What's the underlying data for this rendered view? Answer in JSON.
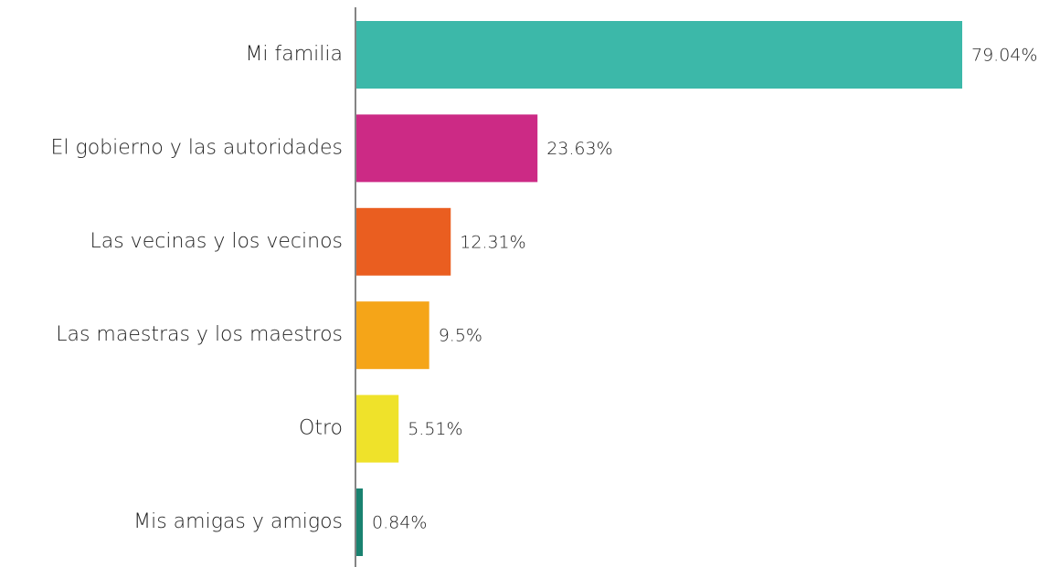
{
  "chart_data": {
    "type": "bar",
    "orientation": "horizontal",
    "categories": [
      "Mi familia",
      "El gobierno y las autoridades",
      "Las vecinas y los vecinos",
      "Las maestras y los maestros",
      "Otro",
      "Mis amigas y amigos"
    ],
    "values": [
      79.04,
      23.63,
      12.31,
      9.5,
      5.51,
      0.84
    ],
    "value_labels": [
      "79.04%",
      "23.63%",
      "12.31%",
      "9.5%",
      "5.51%",
      "0.84%"
    ],
    "colors": [
      "#3cb8a9",
      "#cc2a85",
      "#ea5e20",
      "#f5a518",
      "#efe22a",
      "#1a8270"
    ]
  }
}
